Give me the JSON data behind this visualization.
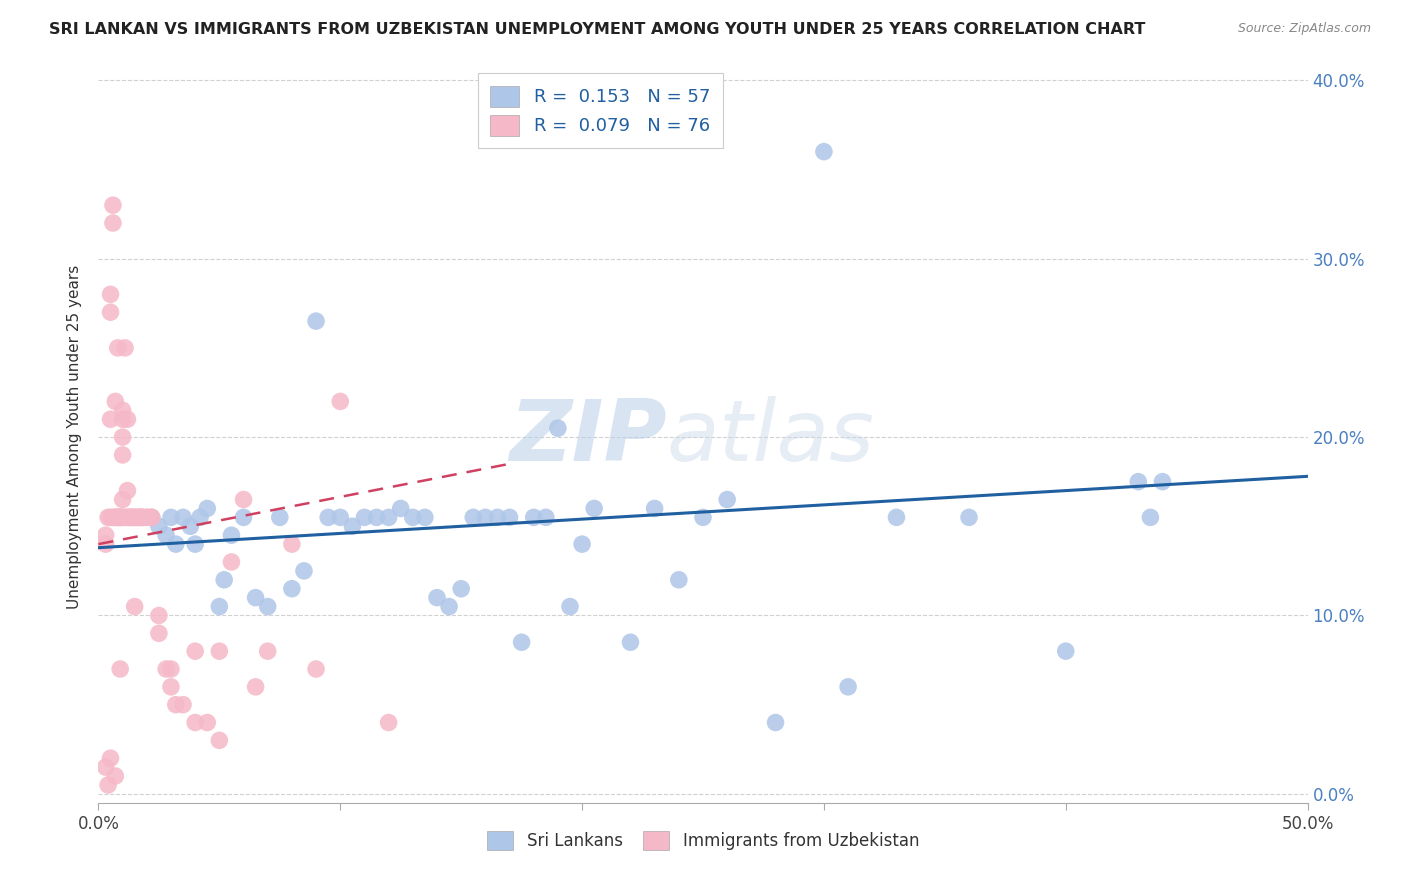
{
  "title": "SRI LANKAN VS IMMIGRANTS FROM UZBEKISTAN UNEMPLOYMENT AMONG YOUTH UNDER 25 YEARS CORRELATION CHART",
  "source": "Source: ZipAtlas.com",
  "ylabel": "Unemployment Among Youth under 25 years",
  "xlim": [
    0.0,
    0.5
  ],
  "ylim": [
    -0.005,
    0.405
  ],
  "xticks": [
    0.0,
    0.1,
    0.2,
    0.3,
    0.4,
    0.5
  ],
  "yticks": [
    0.0,
    0.1,
    0.2,
    0.3,
    0.4
  ],
  "blue_R": 0.153,
  "blue_N": 57,
  "pink_R": 0.079,
  "pink_N": 76,
  "blue_color": "#aec6e8",
  "pink_color": "#f5b8c8",
  "blue_line_color": "#2060a0",
  "pink_line_color": "#d04060",
  "watermark_zip": "ZIP",
  "watermark_atlas": "atlas",
  "legend_sri": "Sri Lankans",
  "legend_uzb": "Immigrants from Uzbekistan",
  "blue_scatter_x": [
    0.022,
    0.025,
    0.028,
    0.03,
    0.032,
    0.035,
    0.038,
    0.04,
    0.042,
    0.045,
    0.05,
    0.052,
    0.055,
    0.06,
    0.065,
    0.07,
    0.075,
    0.08,
    0.085,
    0.09,
    0.095,
    0.1,
    0.105,
    0.11,
    0.115,
    0.12,
    0.125,
    0.13,
    0.135,
    0.14,
    0.145,
    0.15,
    0.155,
    0.16,
    0.165,
    0.17,
    0.175,
    0.18,
    0.185,
    0.19,
    0.195,
    0.2,
    0.205,
    0.22,
    0.23,
    0.24,
    0.25,
    0.26,
    0.28,
    0.3,
    0.31,
    0.33,
    0.36,
    0.4,
    0.43,
    0.435,
    0.44
  ],
  "blue_scatter_y": [
    0.155,
    0.15,
    0.145,
    0.155,
    0.14,
    0.155,
    0.15,
    0.14,
    0.155,
    0.16,
    0.105,
    0.12,
    0.145,
    0.155,
    0.11,
    0.105,
    0.155,
    0.115,
    0.125,
    0.265,
    0.155,
    0.155,
    0.15,
    0.155,
    0.155,
    0.155,
    0.16,
    0.155,
    0.155,
    0.11,
    0.105,
    0.115,
    0.155,
    0.155,
    0.155,
    0.155,
    0.085,
    0.155,
    0.155,
    0.205,
    0.105,
    0.14,
    0.16,
    0.085,
    0.16,
    0.12,
    0.155,
    0.165,
    0.04,
    0.36,
    0.06,
    0.155,
    0.155,
    0.08,
    0.175,
    0.155,
    0.175
  ],
  "pink_scatter_x": [
    0.003,
    0.003,
    0.003,
    0.004,
    0.004,
    0.005,
    0.005,
    0.005,
    0.005,
    0.005,
    0.006,
    0.006,
    0.006,
    0.007,
    0.007,
    0.007,
    0.007,
    0.008,
    0.008,
    0.008,
    0.008,
    0.009,
    0.009,
    0.009,
    0.009,
    0.01,
    0.01,
    0.01,
    0.01,
    0.01,
    0.01,
    0.01,
    0.011,
    0.011,
    0.012,
    0.012,
    0.012,
    0.012,
    0.013,
    0.013,
    0.014,
    0.014,
    0.015,
    0.015,
    0.015,
    0.016,
    0.016,
    0.017,
    0.017,
    0.018,
    0.018,
    0.018,
    0.02,
    0.02,
    0.022,
    0.022,
    0.025,
    0.025,
    0.028,
    0.03,
    0.03,
    0.032,
    0.035,
    0.04,
    0.04,
    0.045,
    0.05,
    0.05,
    0.055,
    0.06,
    0.065,
    0.07,
    0.08,
    0.09,
    0.1,
    0.12
  ],
  "pink_scatter_y": [
    0.145,
    0.14,
    0.015,
    0.155,
    0.005,
    0.28,
    0.27,
    0.21,
    0.155,
    0.02,
    0.33,
    0.32,
    0.155,
    0.22,
    0.155,
    0.155,
    0.01,
    0.25,
    0.155,
    0.155,
    0.155,
    0.155,
    0.155,
    0.155,
    0.07,
    0.155,
    0.21,
    0.215,
    0.2,
    0.19,
    0.165,
    0.155,
    0.155,
    0.25,
    0.155,
    0.155,
    0.17,
    0.21,
    0.155,
    0.155,
    0.155,
    0.155,
    0.155,
    0.155,
    0.105,
    0.155,
    0.155,
    0.155,
    0.155,
    0.155,
    0.155,
    0.155,
    0.155,
    0.155,
    0.155,
    0.155,
    0.1,
    0.09,
    0.07,
    0.07,
    0.06,
    0.05,
    0.05,
    0.04,
    0.08,
    0.04,
    0.03,
    0.08,
    0.13,
    0.165,
    0.06,
    0.08,
    0.14,
    0.07,
    0.22,
    0.04
  ],
  "blue_trend_x": [
    0.0,
    0.5
  ],
  "blue_trend_y": [
    0.138,
    0.178
  ],
  "pink_trend_x": [
    0.0,
    0.17
  ],
  "pink_trend_y": [
    0.14,
    0.185
  ]
}
